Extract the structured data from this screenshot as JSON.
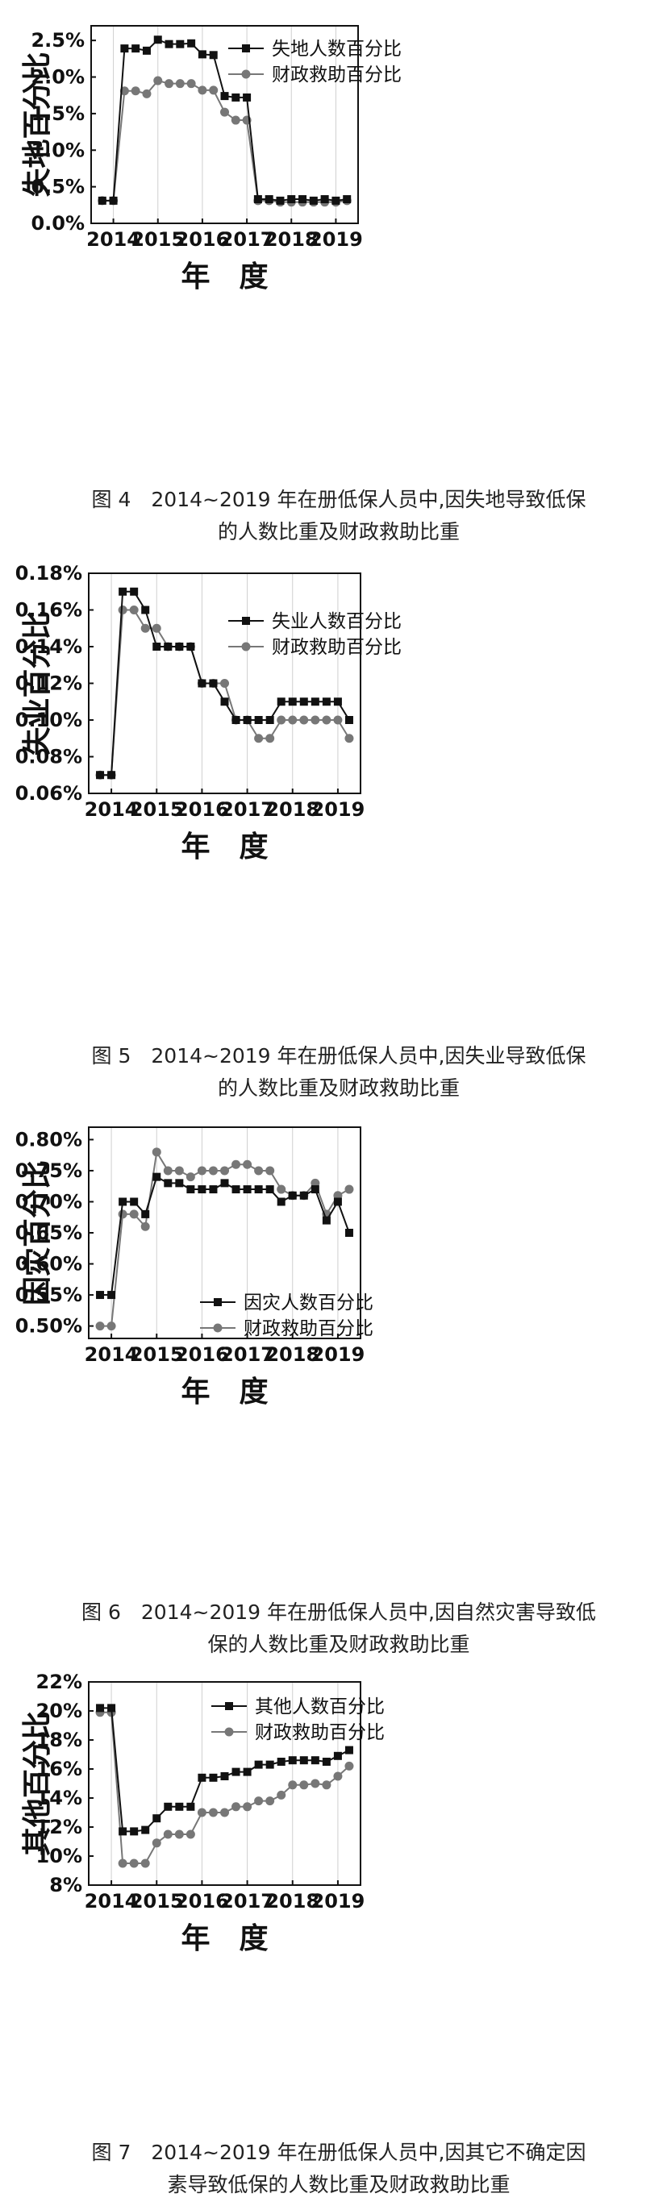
{
  "chart_data": [
    {
      "type": "line",
      "figure_label": "图 4",
      "caption_line1": "2014~2019 年在册低保人员中,因失地导致低保",
      "caption_line2": "的人数比重及财政救助比重",
      "xlabel": "年　度",
      "ylabel": "失地百分比",
      "yticks": [
        "0.0%",
        "0.5%",
        "1.0%",
        "1.5%",
        "2.0%",
        "2.5%"
      ],
      "ylim": [
        0,
        2.7
      ],
      "ytick_values": [
        0,
        0.5,
        1.0,
        1.5,
        2.0,
        2.5
      ],
      "xticks": [
        "2014",
        "2015",
        "2016",
        "2017",
        "2018",
        "2019"
      ],
      "x_start": 2013.75,
      "x_step": 0.25,
      "grid": "vertical lines at years",
      "legend_position": "top-right",
      "series": [
        {
          "name": "失地人数百分比",
          "marker": "square",
          "color": "#111111",
          "values": [
            0.31,
            0.31,
            2.39,
            2.39,
            2.36,
            2.51,
            2.45,
            2.45,
            2.46,
            2.31,
            2.3,
            1.74,
            1.72,
            1.72,
            0.33,
            0.33,
            0.31,
            0.33,
            0.33,
            0.31,
            0.33,
            0.31,
            0.33
          ]
        },
        {
          "name": "财政救助百分比",
          "marker": "circle",
          "color": "#777777",
          "values": [
            0.31,
            0.31,
            1.81,
            1.81,
            1.77,
            1.95,
            1.91,
            1.91,
            1.91,
            1.82,
            1.82,
            1.52,
            1.41,
            1.41,
            0.31,
            0.31,
            0.29,
            0.29,
            0.29,
            0.29,
            0.29,
            0.29,
            0.31
          ]
        }
      ]
    },
    {
      "type": "line",
      "figure_label": "图 5",
      "caption_line1": "2014~2019 年在册低保人员中,因失业导致低保",
      "caption_line2": "的人数比重及财政救助比重",
      "xlabel": "年　度",
      "ylabel": "失业百分比",
      "yticks": [
        "0.06%",
        "0.08%",
        "0.10%",
        "0.12%",
        "0.14%",
        "0.16%",
        "0.18%"
      ],
      "ylim": [
        0.06,
        0.18
      ],
      "ytick_values": [
        0.06,
        0.08,
        0.1,
        0.12,
        0.14,
        0.16,
        0.18
      ],
      "xticks": [
        "2014",
        "2015",
        "2016",
        "2017",
        "2018",
        "2019"
      ],
      "x_start": 2013.75,
      "x_step": 0.25,
      "grid": "vertical lines at years",
      "legend_position": "top-right",
      "series": [
        {
          "name": "失业人数百分比",
          "marker": "square",
          "color": "#111111",
          "values": [
            0.07,
            0.07,
            0.17,
            0.17,
            0.16,
            0.14,
            0.14,
            0.14,
            0.14,
            0.12,
            0.12,
            0.11,
            0.1,
            0.1,
            0.1,
            0.1,
            0.11,
            0.11,
            0.11,
            0.11,
            0.11,
            0.11,
            0.1
          ]
        },
        {
          "name": "财政救助百分比",
          "marker": "circle",
          "color": "#777777",
          "values": [
            0.07,
            0.07,
            0.16,
            0.16,
            0.15,
            0.15,
            0.14,
            0.14,
            0.14,
            0.12,
            0.12,
            0.12,
            0.1,
            0.1,
            0.09,
            0.09,
            0.1,
            0.1,
            0.1,
            0.1,
            0.1,
            0.1,
            0.09
          ]
        }
      ]
    },
    {
      "type": "line",
      "figure_label": "图 6",
      "caption_line1": "2014~2019 年在册低保人员中,因自然灾害导致低",
      "caption_line2": "保的人数比重及财政救助比重",
      "xlabel": "年　度",
      "ylabel": "因灾百分比",
      "yticks": [
        "0.50%",
        "0.55%",
        "0.60%",
        "0.65%",
        "0.70%",
        "0.75%",
        "0.80%"
      ],
      "ylim": [
        0.48,
        0.82
      ],
      "ytick_values": [
        0.5,
        0.55,
        0.6,
        0.65,
        0.7,
        0.75,
        0.8
      ],
      "xticks": [
        "2014",
        "2015",
        "2016",
        "2017",
        "2018",
        "2019"
      ],
      "x_start": 2013.75,
      "x_step": 0.25,
      "grid": "vertical lines at years",
      "legend_position": "bottom-right",
      "series": [
        {
          "name": "因灾人数百分比",
          "marker": "square",
          "color": "#111111",
          "values": [
            0.55,
            0.55,
            0.7,
            0.7,
            0.68,
            0.74,
            0.73,
            0.73,
            0.72,
            0.72,
            0.72,
            0.73,
            0.72,
            0.72,
            0.72,
            0.72,
            0.7,
            0.71,
            0.71,
            0.72,
            0.67,
            0.7,
            0.65
          ]
        },
        {
          "name": "财政救助百分比",
          "marker": "circle",
          "color": "#777777",
          "values": [
            0.5,
            0.5,
            0.68,
            0.68,
            0.66,
            0.78,
            0.75,
            0.75,
            0.74,
            0.75,
            0.75,
            0.75,
            0.76,
            0.76,
            0.75,
            0.75,
            0.72,
            0.71,
            0.71,
            0.73,
            0.68,
            0.71,
            0.72
          ]
        }
      ]
    },
    {
      "type": "line",
      "figure_label": "图 7",
      "caption_line1": "2014~2019 年在册低保人员中,因其它不确定因",
      "caption_line2": "素导致低保的人数比重及财政救助比重",
      "xlabel": "年　度",
      "ylabel": "其他百分比",
      "yticks": [
        "8%",
        "10%",
        "12%",
        "14%",
        "16%",
        "18%",
        "20%",
        "22%"
      ],
      "ylim": [
        8,
        22
      ],
      "ytick_values": [
        8,
        10,
        12,
        14,
        16,
        18,
        20,
        22
      ],
      "xticks": [
        "2014",
        "2015",
        "2016",
        "2017",
        "2018",
        "2019"
      ],
      "x_start": 2013.75,
      "x_step": 0.25,
      "grid": "vertical lines at years",
      "legend_position": "top-right",
      "series": [
        {
          "name": "其他人数百分比",
          "marker": "square",
          "color": "#111111",
          "values": [
            20.2,
            20.2,
            11.7,
            11.7,
            11.8,
            12.6,
            13.4,
            13.4,
            13.4,
            15.4,
            15.4,
            15.5,
            15.8,
            15.8,
            16.3,
            16.3,
            16.5,
            16.6,
            16.6,
            16.6,
            16.5,
            16.9,
            17.3
          ]
        },
        {
          "name": "财政救助百分比",
          "marker": "circle",
          "color": "#777777",
          "values": [
            19.9,
            19.9,
            9.5,
            9.5,
            9.5,
            10.9,
            11.5,
            11.5,
            11.5,
            13.0,
            13.0,
            13.0,
            13.4,
            13.4,
            13.8,
            13.8,
            14.2,
            14.9,
            14.9,
            15.0,
            14.9,
            15.5,
            16.2
          ]
        }
      ]
    }
  ]
}
